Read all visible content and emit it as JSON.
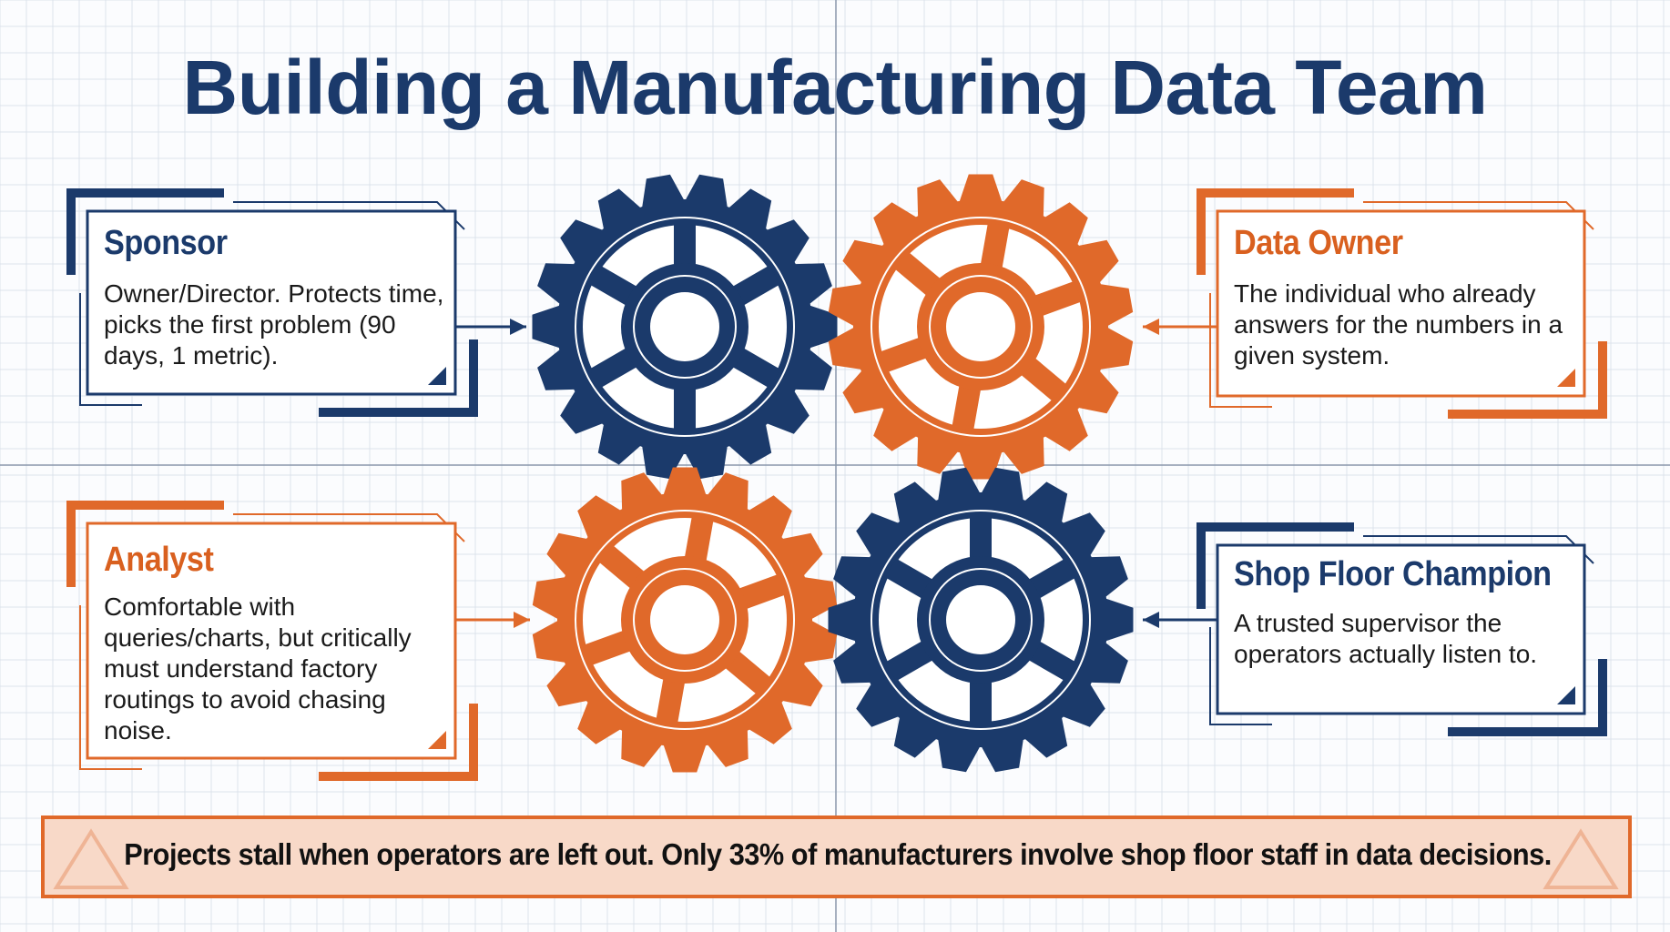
{
  "header": {
    "title": "Building a Manufacturing Data Team"
  },
  "cards": [
    {
      "title": "Sponsor",
      "body": "Owner/Director. Protects time, picks the first problem (90 days, 1 metric)."
    },
    {
      "title": "Data Owner",
      "body": "The individual who already answers for the numbers in a given system."
    },
    {
      "title": "Analyst",
      "body": "Comfortable with queries/charts, but critically must understand factory routings to avoid chasing noise."
    },
    {
      "title": "Shop Floor Champion",
      "body": "A trusted supervisor the operators actually listen to."
    }
  ],
  "banner": {
    "text": "Projects stall when operators are left out. Only 33% of manufacturers involve shop floor staff in data decisions."
  }
}
